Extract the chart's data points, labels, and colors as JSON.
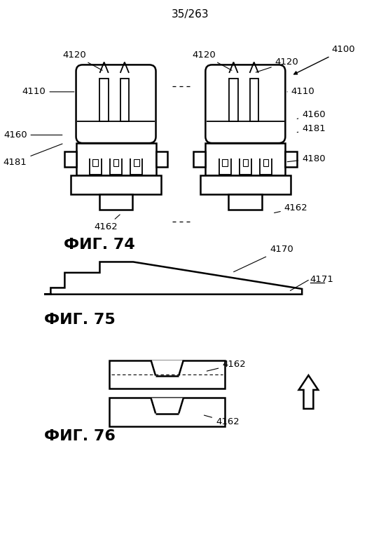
{
  "page_label": "35/263",
  "fig74_label": "ФИГ. 74",
  "fig75_label": "ФИГ. 75",
  "fig76_label": "ФИГ. 76",
  "line_color": "#000000",
  "bg_color": "#ffffff",
  "lw": 1.3,
  "lw_thick": 1.8,
  "annotation_fontsize": 9.5,
  "fig_label_fontsize": 16
}
